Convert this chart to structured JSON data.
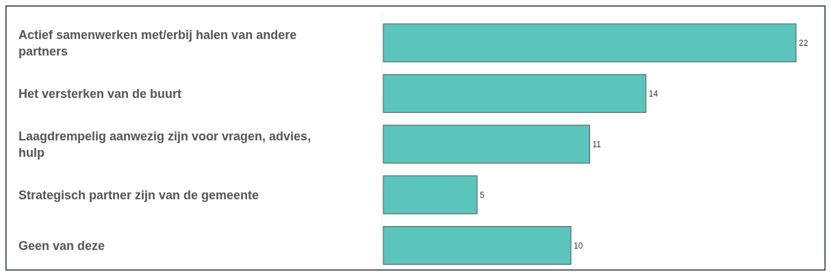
{
  "chart_data": {
    "type": "bar",
    "orientation": "horizontal",
    "categories": [
      "Actief samenwerken met/erbij halen van andere partners",
      "Het versterken van de buurt",
      "Laagdrempelig aanwezig zijn voor vragen, advies, hulp",
      "Strategisch partner zijn van de gemeente",
      "Geen van deze"
    ],
    "values": [
      22,
      14,
      11,
      5,
      10
    ],
    "color": "#5bc5bd",
    "data_labels": true
  }
}
